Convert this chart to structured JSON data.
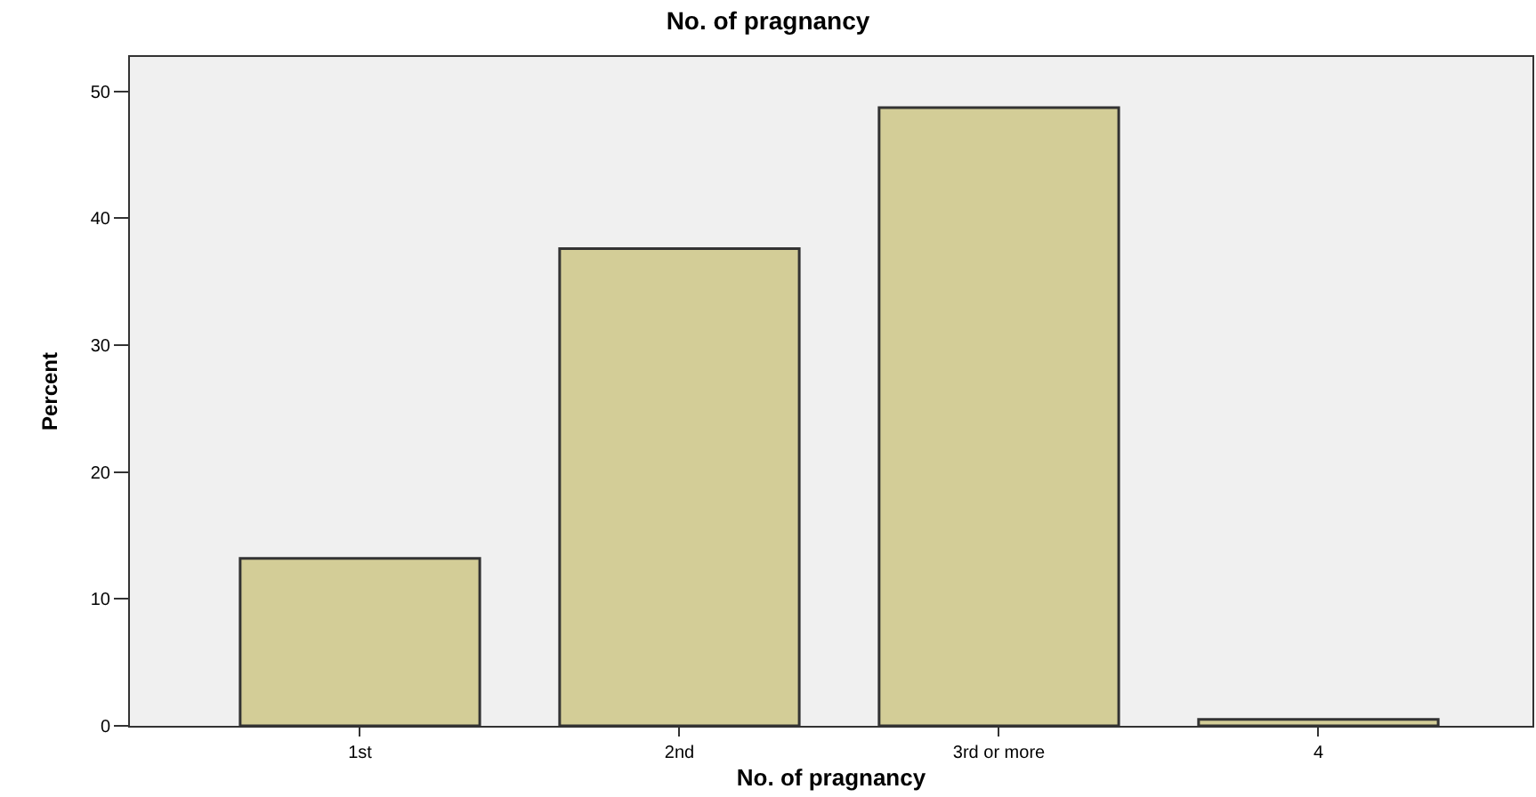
{
  "chart_data": {
    "type": "bar",
    "title": "No. of pragnancy",
    "xlabel": "No. of pragnancy",
    "ylabel": "Percent",
    "categories": [
      "1st",
      "2nd",
      "3rd or more",
      "4"
    ],
    "values": [
      13.2,
      37.6,
      48.7,
      0.5
    ],
    "color": "#d3cd97",
    "ylim": [
      0,
      52.7
    ],
    "yticks": [
      0,
      10,
      20,
      30,
      40,
      50
    ],
    "grid": false,
    "legend": false
  }
}
